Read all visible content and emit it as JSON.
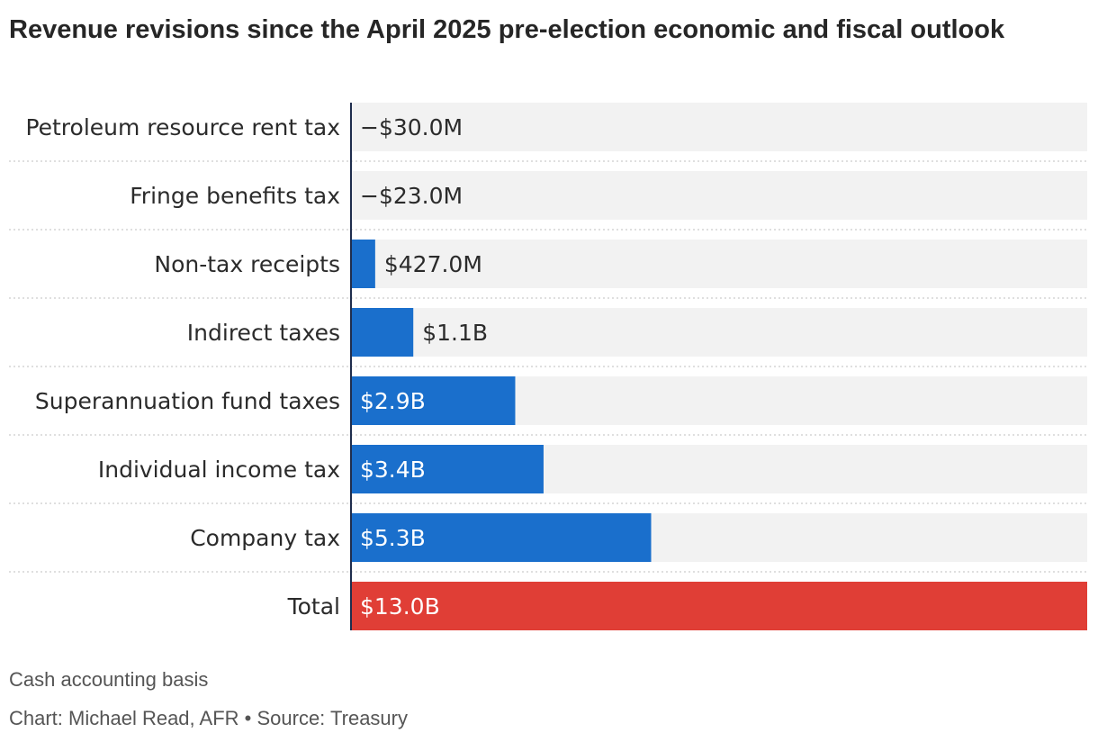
{
  "title": "Revenue revisions since the April 2025 pre-election economic and fiscal outlook",
  "note": "Cash accounting basis",
  "credit": "Chart: Michael Read, AFR • Source: Treasury",
  "colors": {
    "bar": "#1a6fcc",
    "total": "#e03e36",
    "track": "#f2f2f2",
    "axis": "#1f2d4d",
    "divider": "#cccccc",
    "label_dark": "#2b2b2b",
    "label_light": "#ffffff"
  },
  "chart_data": {
    "type": "bar",
    "orientation": "horizontal",
    "unit": "AUD",
    "categories": [
      "Petroleum resource rent tax",
      "Fringe benefits tax",
      "Non-tax receipts",
      "Indirect taxes",
      "Superannuation fund taxes",
      "Individual income tax",
      "Company tax",
      "Total"
    ],
    "values": [
      -30000000,
      -23000000,
      427000000,
      1100000000,
      2900000000,
      3400000000,
      5300000000,
      13000000000
    ],
    "value_labels": [
      "−$30.0M",
      "−$23.0M",
      "$427.0M",
      "$1.1B",
      "$2.9B",
      "$3.4B",
      "$5.3B",
      "$13.0B"
    ],
    "highlight": "Total",
    "xlim": [
      0,
      13000000000
    ],
    "grid": false
  }
}
